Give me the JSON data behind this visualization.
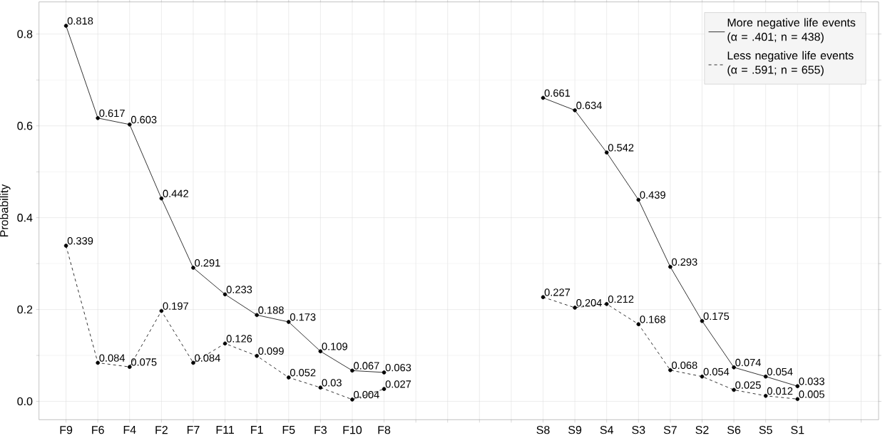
{
  "chart_data": {
    "type": "line",
    "ylabel": "Probability",
    "categories": [
      "F9",
      "F6",
      "F4",
      "F2",
      "F7",
      "F11",
      "F1",
      "F5",
      "F3",
      "F10",
      "F8",
      null,
      null,
      null,
      null,
      "S8",
      "S9",
      "S4",
      "S3",
      "S7",
      "S2",
      "S6",
      "S5",
      "S1",
      null,
      null
    ],
    "series": [
      {
        "name": "More negative life events (α = .401; n = 438)",
        "color": "#000000",
        "line_style": "solid",
        "values": [
          0.818,
          0.617,
          0.603,
          0.442,
          0.291,
          0.233,
          0.188,
          0.173,
          0.109,
          0.067,
          0.063,
          null,
          null,
          null,
          null,
          0.661,
          0.634,
          0.542,
          0.439,
          0.293,
          0.175,
          0.074,
          0.054,
          0.033,
          null,
          null
        ],
        "value_labels": [
          "0.818",
          "0.617",
          "0.603",
          "0.442",
          "0.291",
          "0.233",
          "0.188",
          "0.173",
          "0.109",
          "0.067",
          "0.063",
          null,
          null,
          null,
          null,
          "0.661",
          "0.634",
          "0.542",
          "0.439",
          "0.293",
          "0.175",
          "0.074",
          "0.054",
          "0.033",
          null,
          null
        ]
      },
      {
        "name": "Less negative life events (α = .591; n = 655)",
        "color": "#000000",
        "line_style": "dashed",
        "values": [
          0.339,
          0.084,
          0.075,
          0.197,
          0.084,
          0.126,
          0.099,
          0.052,
          0.03,
          0.004,
          0.027,
          null,
          null,
          null,
          null,
          0.227,
          0.204,
          0.212,
          0.168,
          0.068,
          0.054,
          0.025,
          0.012,
          0.005,
          null,
          null
        ],
        "value_labels": [
          "0.339",
          "0.084",
          "0.075",
          "0.197",
          "0.084",
          "0.126",
          "0.099",
          "0.052",
          "0.03",
          "0.004",
          "0.027",
          null,
          null,
          null,
          null,
          "0.227",
          "0.204",
          "0.212",
          "0.168",
          "0.068",
          "0.054",
          "0.025",
          "0.012",
          "0.005",
          null,
          null
        ]
      }
    ],
    "ylim": [
      -0.04,
      0.87
    ],
    "yticks": [
      {
        "value": 0,
        "label": "0.0"
      },
      {
        "value": 0.2,
        "label": "0.2"
      },
      {
        "value": 0.4,
        "label": "0.4"
      },
      {
        "value": 0.6,
        "label": "0.6"
      },
      {
        "value": 0.8,
        "label": "0.8"
      }
    ],
    "grid": true,
    "legend": "top right",
    "marker": "circle"
  }
}
